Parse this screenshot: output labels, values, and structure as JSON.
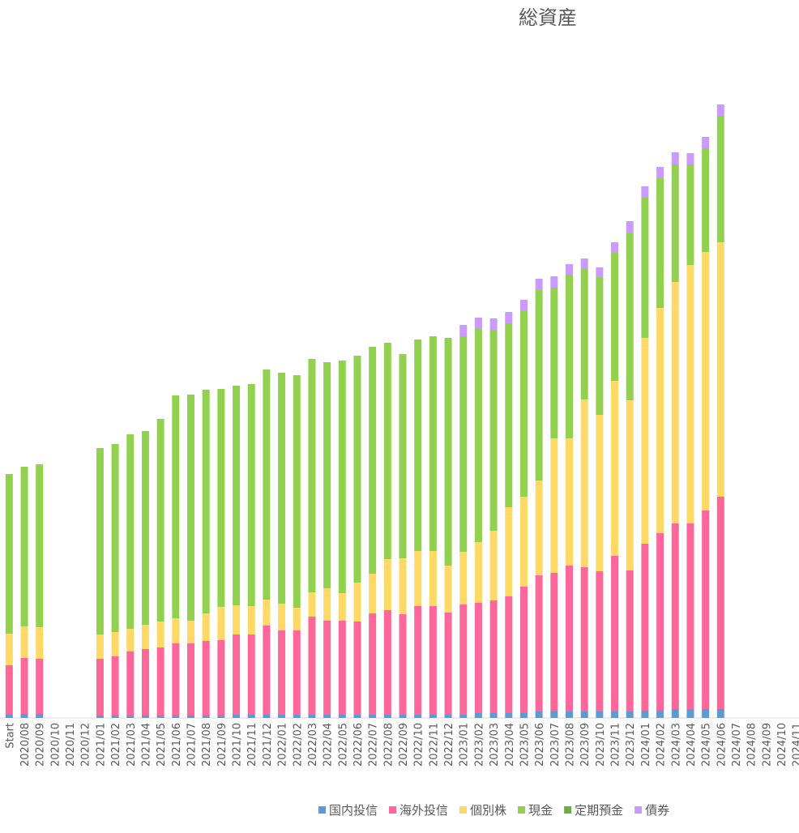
{
  "chart_data": {
    "type": "bar",
    "stacked": true,
    "title": "総資産",
    "categories": [
      "Start",
      "2020/08",
      "2020/09",
      "2020/10",
      "2020/11",
      "2020/12",
      "2021/01",
      "2021/02",
      "2021/03",
      "2021/04",
      "2021/05",
      "2021/06",
      "2021/07",
      "2021/08",
      "2021/09",
      "2021/10",
      "2021/11",
      "2021/12",
      "2022/01",
      "2022/02",
      "2022/03",
      "2022/04",
      "2022/05",
      "2022/06",
      "2022/07",
      "2022/08",
      "2022/09",
      "2022/10",
      "2022/11",
      "2022/12",
      "2023/01",
      "2023/02",
      "2023/03",
      "2023/04",
      "2023/05",
      "2023/06",
      "2023/07",
      "2023/08",
      "2023/09",
      "2023/10",
      "2023/11",
      "2023/12",
      "2024/01",
      "2024/02",
      "2024/03",
      "2024/04",
      "2024/05",
      "2024/06",
      "2024/07",
      "2024/08",
      "2024/09",
      "2024/10",
      "2024/11"
    ],
    "series": [
      {
        "name": "国内投信",
        "color": "#5b9bd5",
        "values": [
          4,
          5,
          5,
          null,
          null,
          null,
          3,
          3,
          3,
          3,
          3,
          3,
          3,
          3,
          3,
          4,
          4,
          4,
          4,
          4,
          4,
          4,
          4,
          4,
          4,
          4,
          4,
          4,
          4,
          4,
          4,
          6,
          6,
          6,
          6,
          8,
          8,
          8,
          8,
          8,
          8,
          8,
          9,
          9,
          11,
          11,
          11,
          11,
          null,
          null,
          null,
          null,
          null
        ]
      },
      {
        "name": "海外投信",
        "color": "#ff6699",
        "values": [
          61,
          69,
          68,
          null,
          null,
          null,
          70,
          73,
          79,
          82,
          84,
          89,
          89,
          92,
          93,
          99,
          99,
          110,
          104,
          104,
          121,
          116,
          116,
          115,
          125,
          129,
          124,
          134,
          134,
          126,
          136,
          136,
          139,
          144,
          156,
          168,
          171,
          180,
          178,
          173,
          192,
          174,
          206,
          219,
          229,
          229,
          245,
          262,
          null,
          null,
          null,
          null,
          null
        ]
      },
      {
        "name": "個別株",
        "color": "#ffd966",
        "values": [
          39,
          39,
          39,
          null,
          null,
          null,
          30,
          30,
          28,
          30,
          32,
          31,
          28,
          34,
          41,
          36,
          35,
          32,
          33,
          28,
          30,
          40,
          34,
          48,
          49,
          63,
          69,
          68,
          68,
          58,
          65,
          75,
          86,
          110,
          111,
          117,
          166,
          157,
          207,
          193,
          216,
          210,
          254,
          278,
          298,
          319,
          319,
          314,
          null,
          null,
          null,
          null,
          null
        ]
      },
      {
        "name": "現金",
        "color": "#92d050",
        "values": [
          197,
          197,
          201,
          null,
          null,
          null,
          230,
          232,
          240,
          239,
          250,
          275,
          279,
          276,
          269,
          271,
          274,
          284,
          285,
          287,
          288,
          279,
          287,
          280,
          280,
          267,
          252,
          261,
          265,
          281,
          266,
          263,
          248,
          227,
          229,
          235,
          186,
          202,
          161,
          170,
          158,
          206,
          173,
          160,
          145,
          124,
          128,
          156,
          null,
          null,
          null,
          null,
          null
        ]
      },
      {
        "name": "定期預金",
        "color": "#70ad47",
        "values": [
          0,
          0,
          0,
          null,
          null,
          null,
          0,
          0,
          0,
          0,
          0,
          0,
          0,
          0,
          0,
          0,
          0,
          0,
          0,
          0,
          0,
          0,
          0,
          0,
          0,
          0,
          0,
          0,
          0,
          0,
          0,
          0,
          0,
          0,
          0,
          0,
          0,
          0,
          0,
          0,
          0,
          0,
          0,
          0,
          0,
          0,
          0,
          0,
          null,
          null,
          null,
          null,
          null
        ]
      },
      {
        "name": "債券",
        "color": "#cc99ff",
        "values": [
          0,
          0,
          0,
          null,
          null,
          null,
          0,
          0,
          0,
          0,
          0,
          0,
          0,
          0,
          0,
          0,
          0,
          0,
          0,
          0,
          0,
          0,
          0,
          0,
          0,
          0,
          0,
          0,
          0,
          0,
          14,
          14,
          14,
          14,
          14,
          14,
          14,
          13,
          13,
          12,
          13,
          15,
          14,
          14,
          15,
          14,
          14,
          14,
          null,
          null,
          null,
          null,
          null
        ]
      }
    ]
  }
}
